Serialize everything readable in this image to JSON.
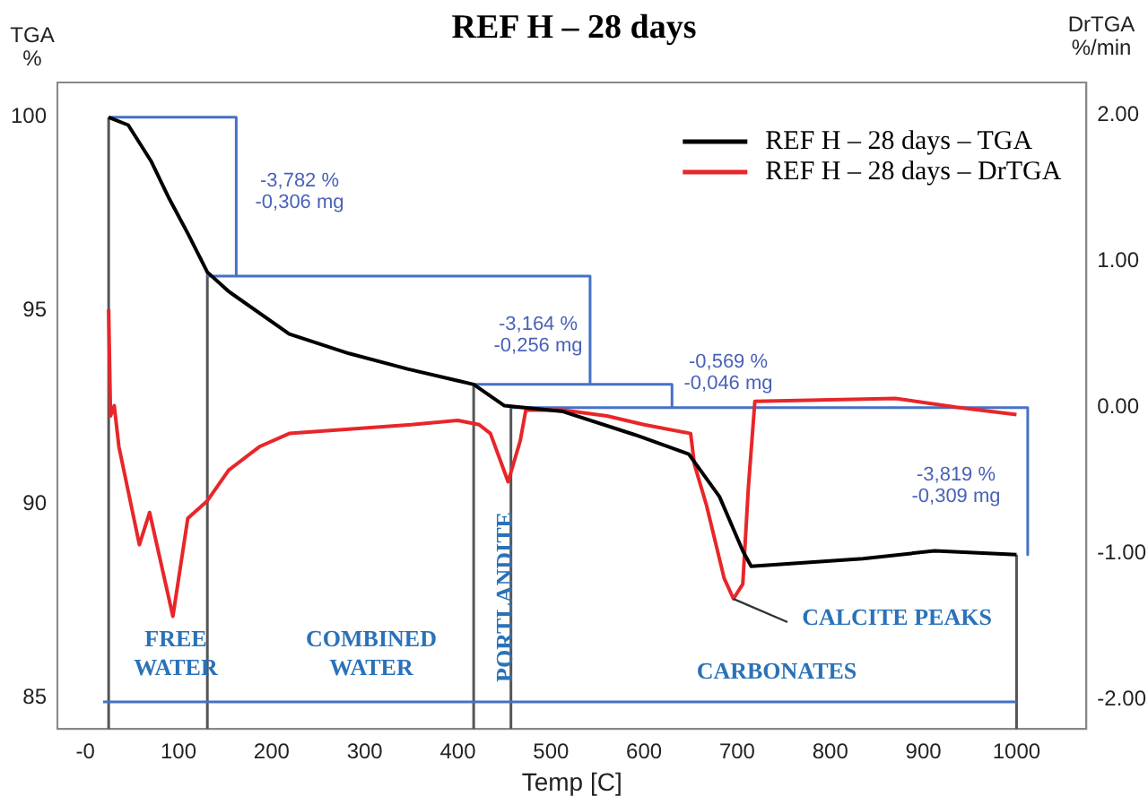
{
  "chart_data": {
    "type": "line",
    "title": "REF H – 28 days",
    "xlabel": "Temp [C]",
    "ylabel": "TGA\n%",
    "y2label": "DrTGA\n%/min",
    "series": [
      {
        "name": "REF H – 28 days – TGA",
        "color": "#000000",
        "x": [
          25,
          46,
          71,
          90,
          110,
          131,
          154,
          219,
          283,
          346,
          417,
          450,
          513,
          590,
          648,
          681,
          706,
          715,
          835,
          912,
          1000
        ],
        "values": [
          100,
          99.8,
          98.85,
          97.9,
          97.0,
          96.0,
          95.5,
          94.4,
          93.9,
          93.5,
          93.1,
          92.55,
          92.4,
          91.8,
          91.3,
          90.2,
          88.8,
          88.4,
          88.6,
          88.8,
          88.7
        ]
      },
      {
        "name": "REF H – 28 days – DrTGA",
        "color": "#e8262a",
        "axis": "y2",
        "x": [
          25,
          27,
          31,
          36,
          58,
          69,
          94,
          110,
          131,
          154,
          187,
          219,
          283,
          350,
          400,
          423,
          435,
          454,
          467,
          473,
          513,
          560,
          600,
          650,
          654,
          667,
          686,
          696,
          706,
          712,
          719,
          800,
          870,
          935,
          1000
        ],
        "values": [
          0.67,
          -0.06,
          0.01,
          -0.27,
          -0.94,
          -0.72,
          -1.43,
          -0.76,
          -0.64,
          -0.43,
          -0.27,
          -0.18,
          -0.15,
          -0.12,
          -0.09,
          -0.12,
          -0.18,
          -0.51,
          -0.23,
          -0.02,
          -0.02,
          -0.06,
          -0.12,
          -0.18,
          -0.39,
          -0.67,
          -1.17,
          -1.31,
          -1.21,
          -0.55,
          0.04,
          0.05,
          0.06,
          0,
          -0.05
        ]
      },
      {
        "type": "line",
        "color": "#4472c4",
        "x": [
          25,
          162,
          162,
          131,
          542,
          542,
          417,
          630,
          630,
          457,
          1012,
          1012
        ],
        "values": [
          100,
          100,
          95.9,
          95.9,
          95.9,
          93.1,
          93.1,
          93.1,
          92.5,
          92.5,
          92.5,
          88.7
        ]
      },
      {
        "type": "line",
        "color": "#4472c4",
        "x": [
          19,
          1000
        ],
        "values": [
          84.9,
          84.9
        ]
      }
    ],
    "xlim": [
      -30,
      1075
    ],
    "xticks": [
      {
        "value": 0,
        "label": "-0"
      },
      100,
      200,
      300,
      400,
      500,
      600,
      700,
      800,
      900,
      1000
    ],
    "ylim": [
      84.2,
      100.9
    ],
    "yticks": [
      85,
      90,
      95,
      100
    ],
    "y2lim": [
      -2.2,
      2.22
    ],
    "y2ticks": [
      {
        "value": -2,
        "label": "-2.00"
      },
      {
        "value": -1,
        "label": "-1.00"
      },
      {
        "value": 0,
        "label": "0.00"
      },
      {
        "value": 1,
        "label": "1.00"
      },
      {
        "value": 2,
        "label": "2.00"
      }
    ],
    "ref_lines": [
      {
        "axis": "x",
        "value": 25,
        "color": "#555555"
      },
      {
        "axis": "x",
        "value": 131,
        "color": "#555555"
      },
      {
        "axis": "x",
        "value": 417,
        "color": "#555555"
      },
      {
        "axis": "x",
        "value": 457,
        "color": "#555555"
      },
      {
        "axis": "x",
        "value": 1000,
        "color": "#555555"
      }
    ],
    "annotations": [
      "-3,782 %\n-0,306 mg",
      "-3,164 %\n-0,256 mg",
      "-0,569 %\n-0,046 mg",
      "-3,819 %\n-0,309 mg",
      "FREE\nWATER",
      "COMBINED\nWATER",
      "PORTLANDITE",
      "CARBONATES",
      {
        "text": "CALCITE PEAKS",
        "x": 696,
        "y": 87.56
      }
    ],
    "legend": "top right",
    "grid": false,
    "marker": "none",
    "line_style": "solid"
  }
}
